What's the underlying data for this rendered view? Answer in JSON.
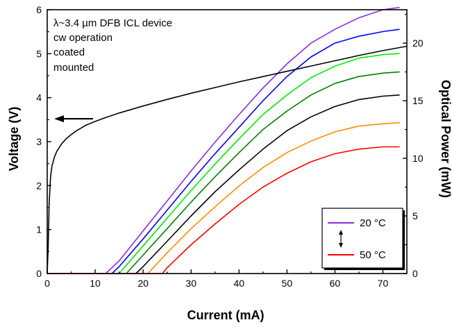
{
  "chart_data": {
    "type": "line",
    "annotations": [
      "λ~3.4 µm DFB ICL device",
      "cw operation",
      "coated",
      "mounted"
    ],
    "xlabel": "Current (mA)",
    "ylabel_left": "Voltage (V)",
    "ylabel_right": "Optical Power (mW)",
    "xlim": [
      0,
      75
    ],
    "ylim_left": [
      0,
      6
    ],
    "ylim_right": [
      0,
      22.9
    ],
    "x_ticks": [
      0,
      10,
      20,
      30,
      40,
      50,
      60,
      70
    ],
    "y_left_ticks": [
      0,
      1,
      2,
      3,
      4,
      5,
      6
    ],
    "y_right_ticks": [
      0,
      5,
      10,
      15,
      20
    ],
    "voltage_series": {
      "color": "#000000",
      "axis": "left",
      "x": [
        0.0,
        0.2,
        0.4,
        0.7,
        1,
        1.5,
        2,
        3,
        4,
        5,
        6,
        8,
        10,
        12,
        15,
        20,
        25,
        30,
        35,
        40,
        45,
        50,
        55,
        60,
        65,
        70,
        75
      ],
      "y": [
        0.0,
        0.6,
        1.6,
        2.2,
        2.45,
        2.65,
        2.78,
        2.95,
        3.07,
        3.16,
        3.24,
        3.37,
        3.46,
        3.54,
        3.65,
        3.81,
        3.96,
        4.1,
        4.23,
        4.36,
        4.48,
        4.6,
        4.72,
        4.84,
        4.96,
        5.07,
        5.17
      ]
    },
    "power_series": [
      {
        "color": "#8a2be2",
        "x": [
          0,
          12.2,
          15,
          20,
          25,
          30,
          35,
          40,
          45,
          50,
          55,
          60,
          65,
          70,
          73.5
        ],
        "y": [
          0,
          0,
          1.1,
          3.7,
          6.3,
          8.9,
          11.4,
          13.8,
          16.1,
          18.2,
          20.0,
          21.2,
          22.2,
          22.9,
          23.1
        ]
      },
      {
        "color": "#0000ff",
        "x": [
          0,
          13.5,
          15,
          20,
          25,
          30,
          35,
          40,
          45,
          50,
          55,
          60,
          65,
          70,
          73.5
        ],
        "y": [
          0,
          0,
          0.6,
          3.0,
          5.5,
          8.0,
          10.4,
          12.7,
          15.0,
          17.1,
          18.8,
          20.0,
          20.6,
          21.0,
          21.2
        ]
      },
      {
        "color": "#00ee00",
        "x": [
          0,
          15,
          20,
          25,
          30,
          35,
          40,
          45,
          50,
          55,
          60,
          65,
          70,
          73.5
        ],
        "y": [
          0,
          0,
          2.4,
          4.8,
          7.2,
          9.5,
          11.7,
          13.8,
          15.5,
          17.0,
          18.0,
          18.7,
          19.0,
          19.1
        ]
      },
      {
        "color": "#008000",
        "x": [
          0,
          16.5,
          20,
          25,
          30,
          35,
          40,
          45,
          50,
          55,
          60,
          65,
          70,
          73.5
        ],
        "y": [
          0,
          0,
          1.6,
          3.9,
          6.2,
          8.4,
          10.5,
          12.5,
          14.1,
          15.5,
          16.5,
          17.1,
          17.4,
          17.5
        ]
      },
      {
        "color": "#000000",
        "x": [
          0,
          18.5,
          20,
          25,
          30,
          35,
          40,
          45,
          50,
          55,
          60,
          65,
          70,
          73.5
        ],
        "y": [
          0,
          0,
          0.6,
          2.8,
          5.0,
          7.1,
          9.0,
          10.8,
          12.4,
          13.6,
          14.5,
          15.1,
          15.4,
          15.5
        ]
      },
      {
        "color": "#ff8c00",
        "x": [
          0,
          21,
          25,
          30,
          35,
          40,
          45,
          50,
          55,
          60,
          65,
          70,
          73.5
        ],
        "y": [
          0,
          0,
          1.8,
          3.9,
          5.8,
          7.6,
          9.2,
          10.5,
          11.5,
          12.3,
          12.8,
          13.0,
          13.1
        ]
      },
      {
        "color": "#ff0000",
        "x": [
          0,
          24,
          25,
          30,
          35,
          40,
          45,
          50,
          55,
          60,
          65,
          70,
          73.5
        ],
        "y": [
          0,
          0,
          0.5,
          2.5,
          4.3,
          6.0,
          7.5,
          8.7,
          9.7,
          10.4,
          10.8,
          11.0,
          11.0
        ]
      }
    ],
    "legend": {
      "placement": "bottom-right",
      "entries": [
        {
          "label": "20 °C",
          "color": "#8a2be2"
        },
        {
          "label": "50 °C",
          "color": "#ff0000"
        }
      ]
    },
    "arrow": {
      "direction": "left",
      "points_to_axis": "left",
      "voltage_level": 3.52
    }
  }
}
